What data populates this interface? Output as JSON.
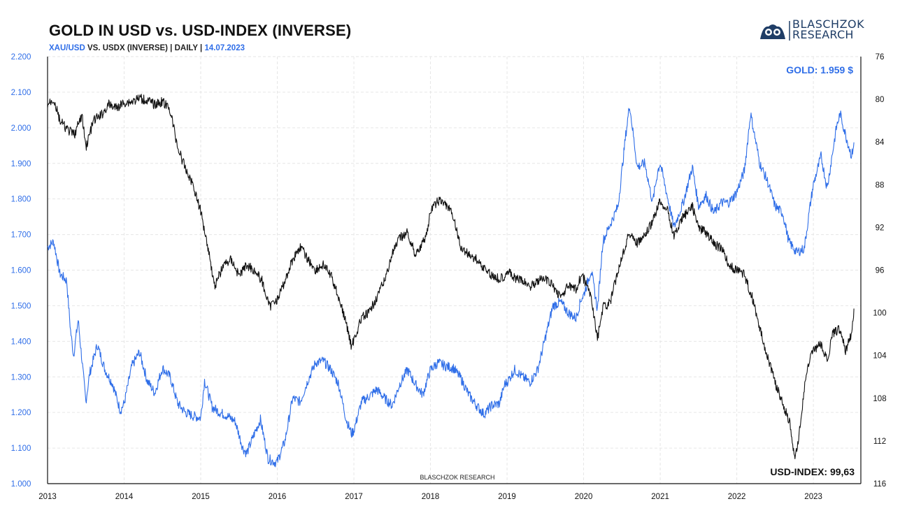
{
  "header": {
    "title": "GOLD IN USD vs. USD-INDEX (INVERSE)",
    "subtitle_gold": "XAU/USD",
    "subtitle_mid": " VS. USDX (INVERSE) | DAILY | ",
    "subtitle_date": "14.07.2023"
  },
  "logo": {
    "line1": "BLASCHZOK",
    "line2": "RESEARCH"
  },
  "watermark": "BLASCHZOK  RESEARCH",
  "colors": {
    "gold": "#2f6ee8",
    "usd": "#111111",
    "grid": "#e6e6e6"
  },
  "chart_data": {
    "type": "line",
    "title": "GOLD IN USD vs. USD-INDEX (INVERSE)",
    "x_ticks": [
      "2013",
      "2014",
      "2015",
      "2016",
      "2017",
      "2018",
      "2019",
      "2020",
      "2021",
      "2022",
      "2023"
    ],
    "left_axis": {
      "min": 1000,
      "max": 2200,
      "ticks": [
        "1.000",
        "1.100",
        "1.200",
        "1.300",
        "1.400",
        "1.500",
        "1.600",
        "1.700",
        "1.800",
        "1.900",
        "2.000",
        "2.100",
        "2.200"
      ]
    },
    "right_axis": {
      "inverted": true,
      "min": 76,
      "max": 116,
      "ticks": [
        "76",
        "80",
        "84",
        "88",
        "92",
        "96",
        "100",
        "104",
        "108",
        "112",
        "116"
      ]
    },
    "grid": true,
    "labels": {
      "gold_last": "GOLD: 1.959 $",
      "usd_last": "USD-INDEX: 99,63"
    },
    "series": [
      {
        "name": "XAU/USD",
        "axis": "left",
        "color": "#2f6ee8",
        "points": [
          [
            2013.0,
            1665
          ],
          [
            2013.08,
            1680
          ],
          [
            2013.16,
            1590
          ],
          [
            2013.25,
            1570
          ],
          [
            2013.3,
            1430
          ],
          [
            2013.34,
            1360
          ],
          [
            2013.4,
            1460
          ],
          [
            2013.5,
            1230
          ],
          [
            2013.55,
            1310
          ],
          [
            2013.65,
            1390
          ],
          [
            2013.75,
            1320
          ],
          [
            2013.85,
            1280
          ],
          [
            2013.95,
            1205
          ],
          [
            2014.0,
            1225
          ],
          [
            2014.1,
            1330
          ],
          [
            2014.2,
            1370
          ],
          [
            2014.3,
            1290
          ],
          [
            2014.4,
            1255
          ],
          [
            2014.5,
            1325
          ],
          [
            2014.6,
            1300
          ],
          [
            2014.7,
            1225
          ],
          [
            2014.8,
            1200
          ],
          [
            2014.9,
            1190
          ],
          [
            2015.0,
            1185
          ],
          [
            2015.05,
            1290
          ],
          [
            2015.15,
            1215
          ],
          [
            2015.25,
            1200
          ],
          [
            2015.35,
            1190
          ],
          [
            2015.45,
            1175
          ],
          [
            2015.55,
            1100
          ],
          [
            2015.6,
            1085
          ],
          [
            2015.7,
            1140
          ],
          [
            2015.78,
            1180
          ],
          [
            2015.88,
            1070
          ],
          [
            2015.97,
            1060
          ],
          [
            2016.0,
            1062
          ],
          [
            2016.1,
            1120
          ],
          [
            2016.2,
            1240
          ],
          [
            2016.3,
            1230
          ],
          [
            2016.4,
            1290
          ],
          [
            2016.5,
            1340
          ],
          [
            2016.6,
            1345
          ],
          [
            2016.7,
            1320
          ],
          [
            2016.8,
            1280
          ],
          [
            2016.9,
            1180
          ],
          [
            2016.97,
            1140
          ],
          [
            2017.0,
            1150
          ],
          [
            2017.1,
            1230
          ],
          [
            2017.2,
            1245
          ],
          [
            2017.3,
            1265
          ],
          [
            2017.4,
            1240
          ],
          [
            2017.5,
            1220
          ],
          [
            2017.6,
            1280
          ],
          [
            2017.7,
            1320
          ],
          [
            2017.8,
            1280
          ],
          [
            2017.9,
            1250
          ],
          [
            2017.97,
            1300
          ],
          [
            2018.0,
            1320
          ],
          [
            2018.1,
            1340
          ],
          [
            2018.2,
            1330
          ],
          [
            2018.3,
            1325
          ],
          [
            2018.4,
            1295
          ],
          [
            2018.5,
            1250
          ],
          [
            2018.6,
            1220
          ],
          [
            2018.7,
            1195
          ],
          [
            2018.8,
            1220
          ],
          [
            2018.9,
            1225
          ],
          [
            2018.97,
            1280
          ],
          [
            2019.0,
            1285
          ],
          [
            2019.1,
            1320
          ],
          [
            2019.2,
            1300
          ],
          [
            2019.3,
            1285
          ],
          [
            2019.4,
            1320
          ],
          [
            2019.5,
            1410
          ],
          [
            2019.6,
            1500
          ],
          [
            2019.7,
            1510
          ],
          [
            2019.8,
            1480
          ],
          [
            2019.9,
            1465
          ],
          [
            2019.97,
            1520
          ],
          [
            2020.0,
            1530
          ],
          [
            2020.1,
            1600
          ],
          [
            2020.18,
            1490
          ],
          [
            2020.25,
            1680
          ],
          [
            2020.35,
            1730
          ],
          [
            2020.45,
            1780
          ],
          [
            2020.55,
            1980
          ],
          [
            2020.6,
            2065
          ],
          [
            2020.7,
            1890
          ],
          [
            2020.8,
            1900
          ],
          [
            2020.9,
            1790
          ],
          [
            2020.97,
            1880
          ],
          [
            2021.0,
            1900
          ],
          [
            2021.1,
            1800
          ],
          [
            2021.18,
            1720
          ],
          [
            2021.3,
            1790
          ],
          [
            2021.42,
            1890
          ],
          [
            2021.5,
            1780
          ],
          [
            2021.6,
            1810
          ],
          [
            2021.7,
            1760
          ],
          [
            2021.8,
            1790
          ],
          [
            2021.9,
            1790
          ],
          [
            2021.97,
            1810
          ],
          [
            2022.0,
            1820
          ],
          [
            2022.1,
            1880
          ],
          [
            2022.18,
            2040
          ],
          [
            2022.3,
            1900
          ],
          [
            2022.4,
            1850
          ],
          [
            2022.5,
            1780
          ],
          [
            2022.6,
            1760
          ],
          [
            2022.68,
            1680
          ],
          [
            2022.78,
            1650
          ],
          [
            2022.88,
            1660
          ],
          [
            2022.97,
            1800
          ],
          [
            2023.0,
            1840
          ],
          [
            2023.1,
            1920
          ],
          [
            2023.18,
            1830
          ],
          [
            2023.3,
            2000
          ],
          [
            2023.35,
            2040
          ],
          [
            2023.42,
            1980
          ],
          [
            2023.5,
            1920
          ],
          [
            2023.53,
            1959
          ]
        ]
      },
      {
        "name": "USD-INDEX (INVERSE)",
        "axis": "right",
        "color": "#111111",
        "points": [
          [
            2013.0,
            80.5
          ],
          [
            2013.08,
            80.0
          ],
          [
            2013.16,
            82.0
          ],
          [
            2013.25,
            82.8
          ],
          [
            2013.35,
            83.3
          ],
          [
            2013.45,
            81.5
          ],
          [
            2013.5,
            84.5
          ],
          [
            2013.6,
            82.0
          ],
          [
            2013.7,
            81.5
          ],
          [
            2013.8,
            80.5
          ],
          [
            2013.9,
            80.8
          ],
          [
            2014.0,
            80.3
          ],
          [
            2014.1,
            80.2
          ],
          [
            2014.2,
            79.9
          ],
          [
            2014.3,
            80.1
          ],
          [
            2014.4,
            80.5
          ],
          [
            2014.5,
            80.2
          ],
          [
            2014.6,
            81.0
          ],
          [
            2014.7,
            84.5
          ],
          [
            2014.8,
            86.5
          ],
          [
            2014.9,
            88.0
          ],
          [
            2015.0,
            90.5
          ],
          [
            2015.1,
            94.0
          ],
          [
            2015.18,
            97.5
          ],
          [
            2015.3,
            95.5
          ],
          [
            2015.4,
            95.0
          ],
          [
            2015.5,
            96.5
          ],
          [
            2015.6,
            95.5
          ],
          [
            2015.7,
            96.0
          ],
          [
            2015.8,
            97.0
          ],
          [
            2015.9,
            99.5
          ],
          [
            2015.97,
            98.7
          ],
          [
            2016.0,
            98.8
          ],
          [
            2016.1,
            97.0
          ],
          [
            2016.2,
            95.0
          ],
          [
            2016.3,
            93.8
          ],
          [
            2016.4,
            95.0
          ],
          [
            2016.5,
            96.0
          ],
          [
            2016.6,
            95.5
          ],
          [
            2016.7,
            96.5
          ],
          [
            2016.8,
            98.5
          ],
          [
            2016.9,
            101.0
          ],
          [
            2016.97,
            103.2
          ],
          [
            2017.0,
            102.5
          ],
          [
            2017.1,
            100.5
          ],
          [
            2017.2,
            100.0
          ],
          [
            2017.3,
            98.5
          ],
          [
            2017.4,
            97.0
          ],
          [
            2017.5,
            94.5
          ],
          [
            2017.6,
            93.0
          ],
          [
            2017.7,
            92.5
          ],
          [
            2017.8,
            94.5
          ],
          [
            2017.9,
            93.5
          ],
          [
            2017.97,
            92.0
          ],
          [
            2018.0,
            90.5
          ],
          [
            2018.1,
            89.5
          ],
          [
            2018.2,
            89.8
          ],
          [
            2018.3,
            91.0
          ],
          [
            2018.4,
            94.0
          ],
          [
            2018.5,
            94.5
          ],
          [
            2018.6,
            95.0
          ],
          [
            2018.7,
            95.8
          ],
          [
            2018.8,
            96.5
          ],
          [
            2018.9,
            96.8
          ],
          [
            2018.97,
            96.5
          ],
          [
            2019.0,
            96.0
          ],
          [
            2019.1,
            96.8
          ],
          [
            2019.2,
            97.0
          ],
          [
            2019.3,
            97.5
          ],
          [
            2019.4,
            97.0
          ],
          [
            2019.5,
            96.8
          ],
          [
            2019.6,
            97.5
          ],
          [
            2019.7,
            98.5
          ],
          [
            2019.8,
            97.5
          ],
          [
            2019.9,
            97.8
          ],
          [
            2019.97,
            96.5
          ],
          [
            2020.0,
            96.8
          ],
          [
            2020.1,
            98.5
          ],
          [
            2020.18,
            102.5
          ],
          [
            2020.25,
            99.5
          ],
          [
            2020.35,
            99.0
          ],
          [
            2020.45,
            96.0
          ],
          [
            2020.55,
            93.5
          ],
          [
            2020.6,
            92.5
          ],
          [
            2020.7,
            93.5
          ],
          [
            2020.8,
            92.8
          ],
          [
            2020.9,
            91.5
          ],
          [
            2020.97,
            90.0
          ],
          [
            2021.0,
            89.5
          ],
          [
            2021.1,
            90.5
          ],
          [
            2021.18,
            92.8
          ],
          [
            2021.3,
            91.0
          ],
          [
            2021.42,
            90.0
          ],
          [
            2021.5,
            92.0
          ],
          [
            2021.6,
            92.5
          ],
          [
            2021.7,
            93.5
          ],
          [
            2021.8,
            94.0
          ],
          [
            2021.9,
            95.5
          ],
          [
            2021.97,
            96.0
          ],
          [
            2022.0,
            95.8
          ],
          [
            2022.1,
            96.5
          ],
          [
            2022.2,
            98.5
          ],
          [
            2022.3,
            101.5
          ],
          [
            2022.4,
            104.0
          ],
          [
            2022.5,
            106.5
          ],
          [
            2022.6,
            108.5
          ],
          [
            2022.7,
            110.5
          ],
          [
            2022.76,
            114.0
          ],
          [
            2022.82,
            111.0
          ],
          [
            2022.9,
            106.0
          ],
          [
            2022.97,
            104.0
          ],
          [
            2023.0,
            103.5
          ],
          [
            2023.1,
            103.0
          ],
          [
            2023.18,
            104.5
          ],
          [
            2023.25,
            102.0
          ],
          [
            2023.35,
            101.5
          ],
          [
            2023.42,
            103.5
          ],
          [
            2023.5,
            102.0
          ],
          [
            2023.53,
            99.6
          ]
        ]
      }
    ]
  }
}
